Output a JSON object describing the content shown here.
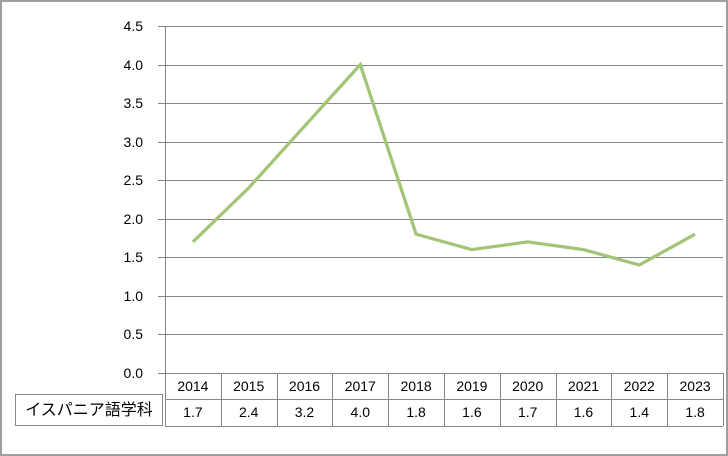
{
  "chart_data": {
    "type": "line",
    "title": "",
    "categories": [
      "2014",
      "2015",
      "2016",
      "2017",
      "2018",
      "2019",
      "2020",
      "2021",
      "2022",
      "2023"
    ],
    "series": [
      {
        "name": "イスパニア語学科",
        "values": [
          1.7,
          2.4,
          3.2,
          4.0,
          1.8,
          1.6,
          1.7,
          1.6,
          1.4,
          1.8
        ]
      }
    ],
    "xlabel": "",
    "ylabel": "",
    "ylim": [
      0.0,
      4.5
    ],
    "y_tick_step": 0.5,
    "y_tick_labels": [
      "4.5",
      "4.0",
      "3.5",
      "3.0",
      "2.5",
      "2.0",
      "1.5",
      "1.0",
      "0.5",
      "0.0"
    ],
    "grid": true,
    "data_table_shown": true,
    "legend_position": "data-table-row-label",
    "colors": {
      "series_line": "#a4c478",
      "gridline": "#868686",
      "table_border": "#868686",
      "chart_border": "#9d9d9d",
      "text": "#000000",
      "background": "#ffffff"
    }
  }
}
